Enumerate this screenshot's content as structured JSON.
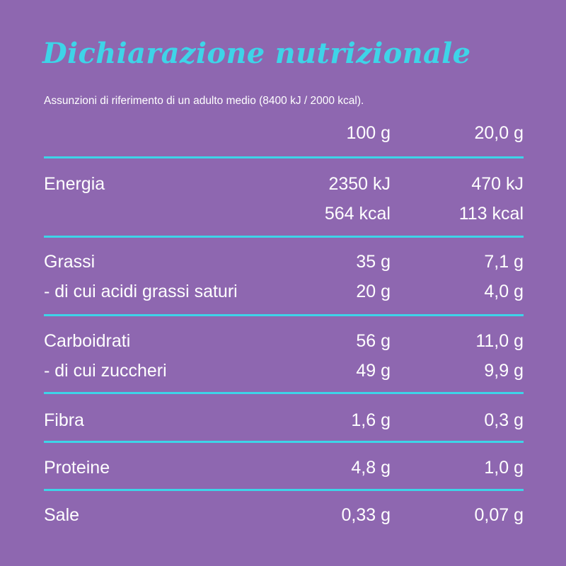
{
  "title": "Dichiarazione nutrizionale",
  "subtitle": "Assunzioni di riferimento di un adulto medio (8400 kJ / 2000 kcal).",
  "columns": [
    "100 g",
    "20,0 g"
  ],
  "rows": {
    "energia_kj": {
      "label": "Energia",
      "per100": "2350 kJ",
      "portion": "470 kJ"
    },
    "energia_kcal": {
      "label": "",
      "per100": "564 kcal",
      "portion": "113 kcal"
    },
    "grassi": {
      "label": "Grassi",
      "per100": "35 g",
      "portion": "7,1 g"
    },
    "saturi": {
      "label": "- di cui acidi grassi saturi",
      "per100": "20 g",
      "portion": "4,0 g"
    },
    "carboidrati": {
      "label": "Carboidrati",
      "per100": "56 g",
      "portion": "11,0 g"
    },
    "zuccheri": {
      "label": "- di cui zuccheri",
      "per100": "49 g",
      "portion": "9,9 g"
    },
    "fibra": {
      "label": "Fibra",
      "per100": "1,6 g",
      "portion": "0,3 g"
    },
    "proteine": {
      "label": "Proteine",
      "per100": "4,8 g",
      "portion": "1,0 g"
    },
    "sale": {
      "label": "Sale",
      "per100": "0,33 g",
      "portion": "0,07 g"
    }
  },
  "colors": {
    "background": "#8e67b0",
    "accent": "#3ed4e8",
    "text": "#ffffff"
  }
}
